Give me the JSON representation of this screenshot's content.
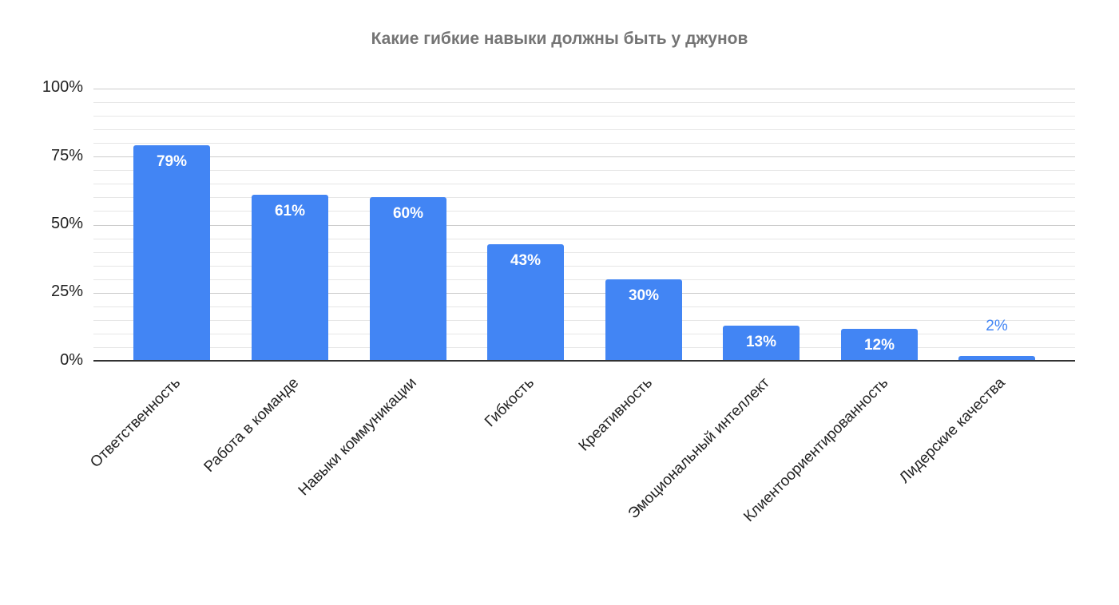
{
  "chart": {
    "title": "Какие гибкие навыки должны быть у джунов",
    "y_ticks": [
      "100%",
      "75%",
      "50%",
      "25%",
      "0%"
    ]
  },
  "bars": [
    {
      "label": "Ответственность",
      "value_label": "79%"
    },
    {
      "label": "Работа в команде",
      "value_label": "61%"
    },
    {
      "label": "Навыки коммуникации",
      "value_label": "60%"
    },
    {
      "label": "Гибкость",
      "value_label": "43%"
    },
    {
      "label": "Креативность",
      "value_label": "30%"
    },
    {
      "label": "Эмоциональный интеллект",
      "value_label": "13%"
    },
    {
      "label": "Клиентоориентированность",
      "value_label": "12%"
    },
    {
      "label": "Лидерские качества",
      "value_label": "2%"
    }
  ],
  "colors": {
    "bar": "#4285f4",
    "title": "#757575",
    "axis": "#333333",
    "grid_major": "#cccccc",
    "grid_minor": "#e6e6e6"
  },
  "chart_data": {
    "type": "bar",
    "title": "Какие гибкие навыки должны быть у джунов",
    "categories": [
      "Ответственность",
      "Работа в команде",
      "Навыки коммуникации",
      "Гибкость",
      "Креативность",
      "Эмоциональный интеллект",
      "Клиентоориентированность",
      "Лидерские качества"
    ],
    "values": [
      79,
      61,
      60,
      43,
      30,
      13,
      12,
      2
    ],
    "value_format": "percent",
    "xlabel": "",
    "ylabel": "",
    "ylim": [
      0,
      100
    ],
    "y_ticks": [
      0,
      25,
      50,
      75,
      100
    ],
    "grid": true,
    "minor_grid_step": 5,
    "data_labels": true,
    "legend": "none",
    "x_label_rotation": -45
  }
}
